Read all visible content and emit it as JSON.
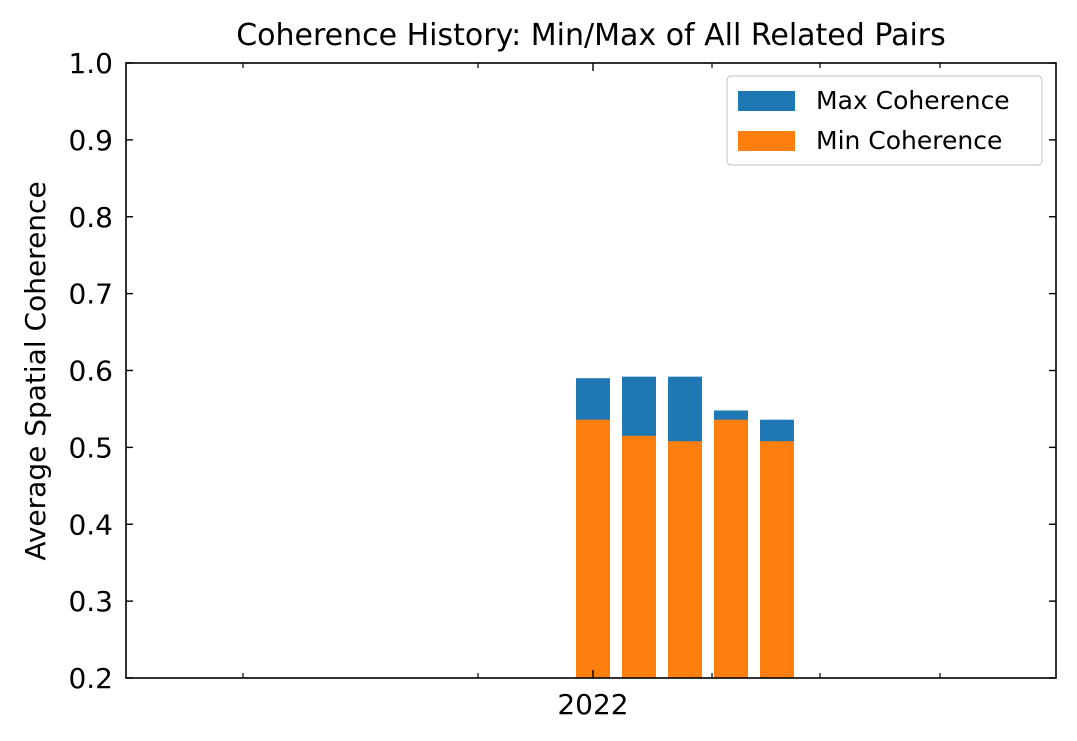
{
  "chart_data": {
    "type": "bar",
    "title": "Coherence History: Min/Max of All Related Pairs",
    "xlabel": "",
    "ylabel": "Average Spatial Coherence",
    "ylim": [
      0.2,
      1.0
    ],
    "yticks": [
      0.2,
      0.3,
      0.4,
      0.5,
      0.6,
      0.7,
      0.8,
      0.9,
      1.0
    ],
    "ytick_labels": [
      "0.2",
      "0.3",
      "0.4",
      "0.5",
      "0.6",
      "0.7",
      "0.8",
      "0.9",
      "1.0"
    ],
    "xtick_labels": [
      "2022"
    ],
    "legend_position": "upper right",
    "grid": false,
    "categories": [
      "",
      "",
      "",
      "",
      ""
    ],
    "series": [
      {
        "name": "Max Coherence",
        "color": "#1f77b4",
        "values": [
          0.59,
          0.592,
          0.592,
          0.548,
          0.536
        ]
      },
      {
        "name": "Min Coherence",
        "color": "#ff7f0e",
        "values": [
          0.536,
          0.515,
          0.508,
          0.536,
          0.508
        ]
      }
    ]
  }
}
